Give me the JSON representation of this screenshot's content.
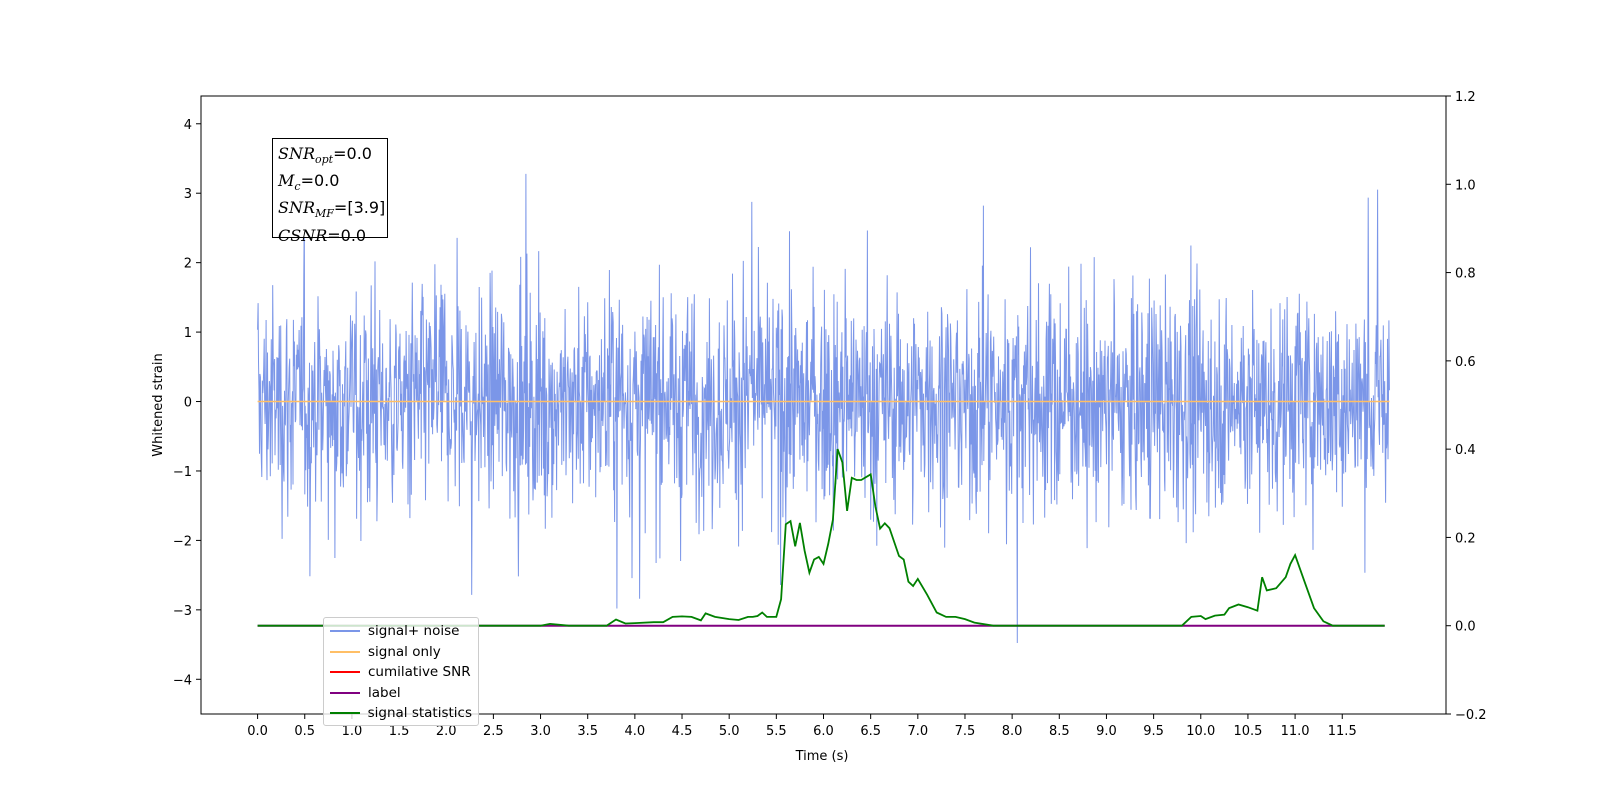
{
  "chart_data": {
    "type": "line",
    "xlabel": "Time (s)",
    "ylabel": "Whitened strain",
    "xlim": [
      -0.6,
      12.6
    ],
    "ylim_left": [
      -4.5,
      4.4
    ],
    "ylim_right": [
      -0.2,
      1.2
    ],
    "x_ticks": [
      "0.0",
      "0.5",
      "1.0",
      "1.5",
      "2.0",
      "2.5",
      "3.0",
      "3.5",
      "4.0",
      "4.5",
      "5.0",
      "5.5",
      "6.0",
      "6.5",
      "7.0",
      "7.5",
      "8.0",
      "8.5",
      "9.0",
      "9.5",
      "10.0",
      "10.5",
      "11.0",
      "11.5"
    ],
    "y_ticks_left": [
      "4",
      "3",
      "2",
      "1",
      "0",
      "−1",
      "−2",
      "−3",
      "−4"
    ],
    "y_ticks_right": [
      "1.2",
      "1.0",
      "0.8",
      "0.6",
      "0.4",
      "0.2",
      "0.0",
      "−0.2"
    ],
    "grid": false,
    "legend_position": "lower-left",
    "annotation": {
      "snr_opt": "0.0",
      "mc": "0.0",
      "snr_mf": "[3.9]",
      "csnr": "0.0"
    },
    "series": [
      {
        "name": "signal+ noise",
        "color": "#7b96e8",
        "axis": "left",
        "description_value": "whitened noise, range approx -3.6 to 4.0",
        "x_range": [
          0.0,
          12.0
        ]
      },
      {
        "name": "signal only",
        "color": "#ffbf66",
        "axis": "left",
        "constant": 0.0,
        "x_range": [
          0.0,
          12.0
        ]
      },
      {
        "name": "cumilative SNR",
        "color": "#ff0000",
        "axis": "right",
        "constant": 0.0,
        "x_range": [
          0.0,
          11.95
        ]
      },
      {
        "name": "label",
        "color": "#800080",
        "axis": "right",
        "constant": 0.0,
        "x_range": [
          0.0,
          11.95
        ]
      },
      {
        "name": "signal statistics",
        "color": "#008000",
        "axis": "right",
        "points": [
          [
            0.0,
            0.0
          ],
          [
            3.0,
            0.0
          ],
          [
            3.1,
            0.004
          ],
          [
            3.3,
            0.0
          ],
          [
            3.6,
            0.0
          ],
          [
            3.7,
            0.0
          ],
          [
            3.8,
            0.014
          ],
          [
            3.9,
            0.005
          ],
          [
            4.0,
            0.006
          ],
          [
            4.2,
            0.008
          ],
          [
            4.3,
            0.008
          ],
          [
            4.4,
            0.02
          ],
          [
            4.5,
            0.021
          ],
          [
            4.6,
            0.02
          ],
          [
            4.7,
            0.012
          ],
          [
            4.75,
            0.028
          ],
          [
            4.85,
            0.02
          ],
          [
            5.0,
            0.015
          ],
          [
            5.1,
            0.013
          ],
          [
            5.2,
            0.02
          ],
          [
            5.25,
            0.02
          ],
          [
            5.3,
            0.022
          ],
          [
            5.35,
            0.03
          ],
          [
            5.4,
            0.02
          ],
          [
            5.5,
            0.02
          ],
          [
            5.55,
            0.06
          ],
          [
            5.6,
            0.23
          ],
          [
            5.65,
            0.237
          ],
          [
            5.7,
            0.18
          ],
          [
            5.75,
            0.233
          ],
          [
            5.8,
            0.17
          ],
          [
            5.85,
            0.12
          ],
          [
            5.9,
            0.15
          ],
          [
            5.95,
            0.156
          ],
          [
            6.0,
            0.14
          ],
          [
            6.05,
            0.185
          ],
          [
            6.1,
            0.24
          ],
          [
            6.15,
            0.4
          ],
          [
            6.2,
            0.37
          ],
          [
            6.25,
            0.26
          ],
          [
            6.3,
            0.335
          ],
          [
            6.35,
            0.33
          ],
          [
            6.4,
            0.33
          ],
          [
            6.5,
            0.343
          ],
          [
            6.55,
            0.27
          ],
          [
            6.6,
            0.22
          ],
          [
            6.65,
            0.232
          ],
          [
            6.7,
            0.221
          ],
          [
            6.8,
            0.158
          ],
          [
            6.85,
            0.15
          ],
          [
            6.9,
            0.1
          ],
          [
            6.95,
            0.09
          ],
          [
            7.0,
            0.106
          ],
          [
            7.1,
            0.07
          ],
          [
            7.2,
            0.03
          ],
          [
            7.3,
            0.02
          ],
          [
            7.4,
            0.02
          ],
          [
            7.5,
            0.015
          ],
          [
            7.6,
            0.007
          ],
          [
            7.8,
            0.0
          ],
          [
            8.0,
            0.0
          ],
          [
            9.0,
            0.0
          ],
          [
            9.5,
            0.0
          ],
          [
            9.8,
            0.0
          ],
          [
            9.9,
            0.02
          ],
          [
            10.0,
            0.022
          ],
          [
            10.05,
            0.015
          ],
          [
            10.15,
            0.023
          ],
          [
            10.25,
            0.025
          ],
          [
            10.3,
            0.04
          ],
          [
            10.4,
            0.048
          ],
          [
            10.5,
            0.042
          ],
          [
            10.6,
            0.034
          ],
          [
            10.65,
            0.11
          ],
          [
            10.7,
            0.08
          ],
          [
            10.8,
            0.085
          ],
          [
            10.9,
            0.11
          ],
          [
            10.95,
            0.14
          ],
          [
            11.0,
            0.16
          ],
          [
            11.1,
            0.1
          ],
          [
            11.2,
            0.04
          ],
          [
            11.3,
            0.01
          ],
          [
            11.4,
            0.0
          ],
          [
            11.95,
            0.0
          ]
        ]
      }
    ]
  }
}
